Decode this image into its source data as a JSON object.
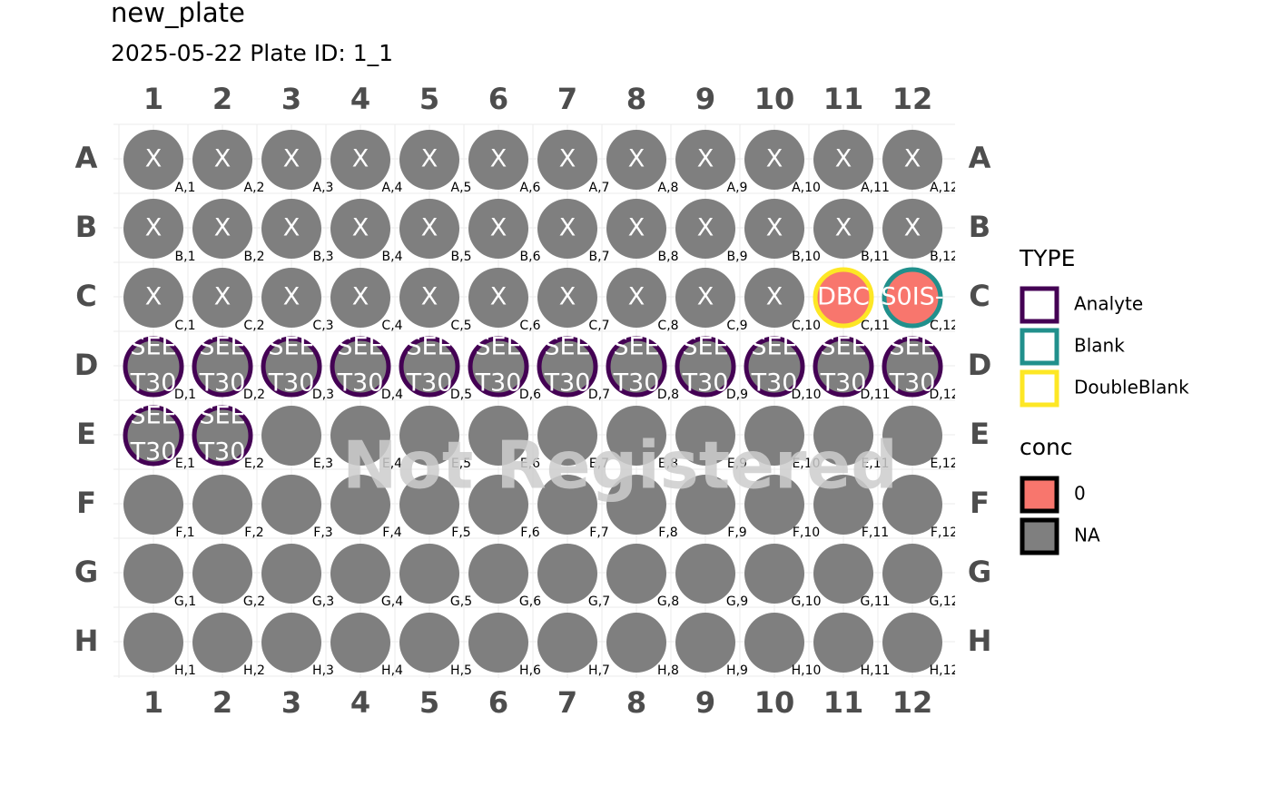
{
  "title": "new_plate",
  "subtitle": "2025-05-22  Plate ID: 1_1",
  "columns": [
    "1",
    "2",
    "3",
    "4",
    "5",
    "6",
    "7",
    "8",
    "9",
    "10",
    "11",
    "12"
  ],
  "rows": [
    "A",
    "B",
    "C",
    "D",
    "E",
    "F",
    "G",
    "H"
  ],
  "watermark": "Not Registered",
  "legend": {
    "type": {
      "title": "TYPE",
      "items": [
        {
          "name": "Analyte",
          "color": "#440154"
        },
        {
          "name": "Blank",
          "color": "#21908C"
        },
        {
          "name": "DoubleBlank",
          "color": "#FDE725"
        }
      ]
    },
    "conc": {
      "title": "conc",
      "items": [
        {
          "name": "0",
          "color": "#F8766D"
        },
        {
          "name": "NA",
          "color": "#7f7f7f"
        }
      ]
    }
  },
  "wells": [
    {
      "label": "A,1",
      "text": [
        "X"
      ]
    },
    {
      "label": "A,2",
      "text": [
        "X"
      ]
    },
    {
      "label": "A,3",
      "text": [
        "X"
      ]
    },
    {
      "label": "A,4",
      "text": [
        "X"
      ]
    },
    {
      "label": "A,5",
      "text": [
        "X"
      ]
    },
    {
      "label": "A,6",
      "text": [
        "X"
      ]
    },
    {
      "label": "A,7",
      "text": [
        "X"
      ]
    },
    {
      "label": "A,8",
      "text": [
        "X"
      ]
    },
    {
      "label": "A,9",
      "text": [
        "X"
      ]
    },
    {
      "label": "A,10",
      "text": [
        "X"
      ]
    },
    {
      "label": "A,11",
      "text": [
        "X"
      ]
    },
    {
      "label": "A,12",
      "text": [
        "X"
      ]
    },
    {
      "label": "B,1",
      "text": [
        "X"
      ]
    },
    {
      "label": "B,2",
      "text": [
        "X"
      ]
    },
    {
      "label": "B,3",
      "text": [
        "X"
      ]
    },
    {
      "label": "B,4",
      "text": [
        "X"
      ]
    },
    {
      "label": "B,5",
      "text": [
        "X"
      ]
    },
    {
      "label": "B,6",
      "text": [
        "X"
      ]
    },
    {
      "label": "B,7",
      "text": [
        "X"
      ]
    },
    {
      "label": "B,8",
      "text": [
        "X"
      ]
    },
    {
      "label": "B,9",
      "text": [
        "X"
      ]
    },
    {
      "label": "B,10",
      "text": [
        "X"
      ]
    },
    {
      "label": "B,11",
      "text": [
        "X"
      ]
    },
    {
      "label": "B,12",
      "text": [
        "X"
      ]
    },
    {
      "label": "C,1",
      "text": [
        "X"
      ]
    },
    {
      "label": "C,2",
      "text": [
        "X"
      ]
    },
    {
      "label": "C,3",
      "text": [
        "X"
      ]
    },
    {
      "label": "C,4",
      "text": [
        "X"
      ]
    },
    {
      "label": "C,5",
      "text": [
        "X"
      ]
    },
    {
      "label": "C,6",
      "text": [
        "X"
      ]
    },
    {
      "label": "C,7",
      "text": [
        "X"
      ]
    },
    {
      "label": "C,8",
      "text": [
        "X"
      ]
    },
    {
      "label": "C,9",
      "text": [
        "X"
      ]
    },
    {
      "label": "C,10",
      "text": [
        "X"
      ]
    },
    {
      "label": "C,11",
      "text": [
        "DBC"
      ],
      "type": "DoubleBlank",
      "conc": "0"
    },
    {
      "label": "C,12",
      "text": [
        "S0IS-"
      ],
      "type": "Blank",
      "conc": "0"
    },
    {
      "label": "D,1",
      "text": [
        "SEE",
        "T30"
      ],
      "type": "Analyte"
    },
    {
      "label": "D,2",
      "text": [
        "SEE",
        "T30"
      ],
      "type": "Analyte"
    },
    {
      "label": "D,3",
      "text": [
        "SEE",
        "T30"
      ],
      "type": "Analyte"
    },
    {
      "label": "D,4",
      "text": [
        "SEE",
        "T30"
      ],
      "type": "Analyte"
    },
    {
      "label": "D,5",
      "text": [
        "SEE",
        "T30"
      ],
      "type": "Analyte"
    },
    {
      "label": "D,6",
      "text": [
        "SEE",
        "T30"
      ],
      "type": "Analyte"
    },
    {
      "label": "D,7",
      "text": [
        "SEE",
        "T30"
      ],
      "type": "Analyte"
    },
    {
      "label": "D,8",
      "text": [
        "SEE",
        "T30"
      ],
      "type": "Analyte"
    },
    {
      "label": "D,9",
      "text": [
        "SEE",
        "T30"
      ],
      "type": "Analyte"
    },
    {
      "label": "D,10",
      "text": [
        "SEE",
        "T30"
      ],
      "type": "Analyte"
    },
    {
      "label": "D,11",
      "text": [
        "SEE",
        "T30"
      ],
      "type": "Analyte"
    },
    {
      "label": "D,12",
      "text": [
        "SEE",
        "T30"
      ],
      "type": "Analyte"
    },
    {
      "label": "E,1",
      "text": [
        "SEE",
        "T30"
      ],
      "type": "Analyte"
    },
    {
      "label": "E,2",
      "text": [
        "SEE",
        "T30"
      ],
      "type": "Analyte"
    },
    {
      "label": "E,3"
    },
    {
      "label": "E,4"
    },
    {
      "label": "E,5"
    },
    {
      "label": "E,6"
    },
    {
      "label": "E,7"
    },
    {
      "label": "E,8"
    },
    {
      "label": "E,9"
    },
    {
      "label": "E,10"
    },
    {
      "label": "E,11"
    },
    {
      "label": "E,12"
    },
    {
      "label": "F,1"
    },
    {
      "label": "F,2"
    },
    {
      "label": "F,3"
    },
    {
      "label": "F,4"
    },
    {
      "label": "F,5"
    },
    {
      "label": "F,6"
    },
    {
      "label": "F,7"
    },
    {
      "label": "F,8"
    },
    {
      "label": "F,9"
    },
    {
      "label": "F,10"
    },
    {
      "label": "F,11"
    },
    {
      "label": "F,12"
    },
    {
      "label": "G,1"
    },
    {
      "label": "G,2"
    },
    {
      "label": "G,3"
    },
    {
      "label": "G,4"
    },
    {
      "label": "G,5"
    },
    {
      "label": "G,6"
    },
    {
      "label": "G,7"
    },
    {
      "label": "G,8"
    },
    {
      "label": "G,9"
    },
    {
      "label": "G,10"
    },
    {
      "label": "G,11"
    },
    {
      "label": "G,12"
    },
    {
      "label": "H,1"
    },
    {
      "label": "H,2"
    },
    {
      "label": "H,3"
    },
    {
      "label": "H,4"
    },
    {
      "label": "H,5"
    },
    {
      "label": "H,6"
    },
    {
      "label": "H,7"
    },
    {
      "label": "H,8"
    },
    {
      "label": "H,9"
    },
    {
      "label": "H,10"
    },
    {
      "label": "H,11"
    },
    {
      "label": "H,12"
    }
  ]
}
